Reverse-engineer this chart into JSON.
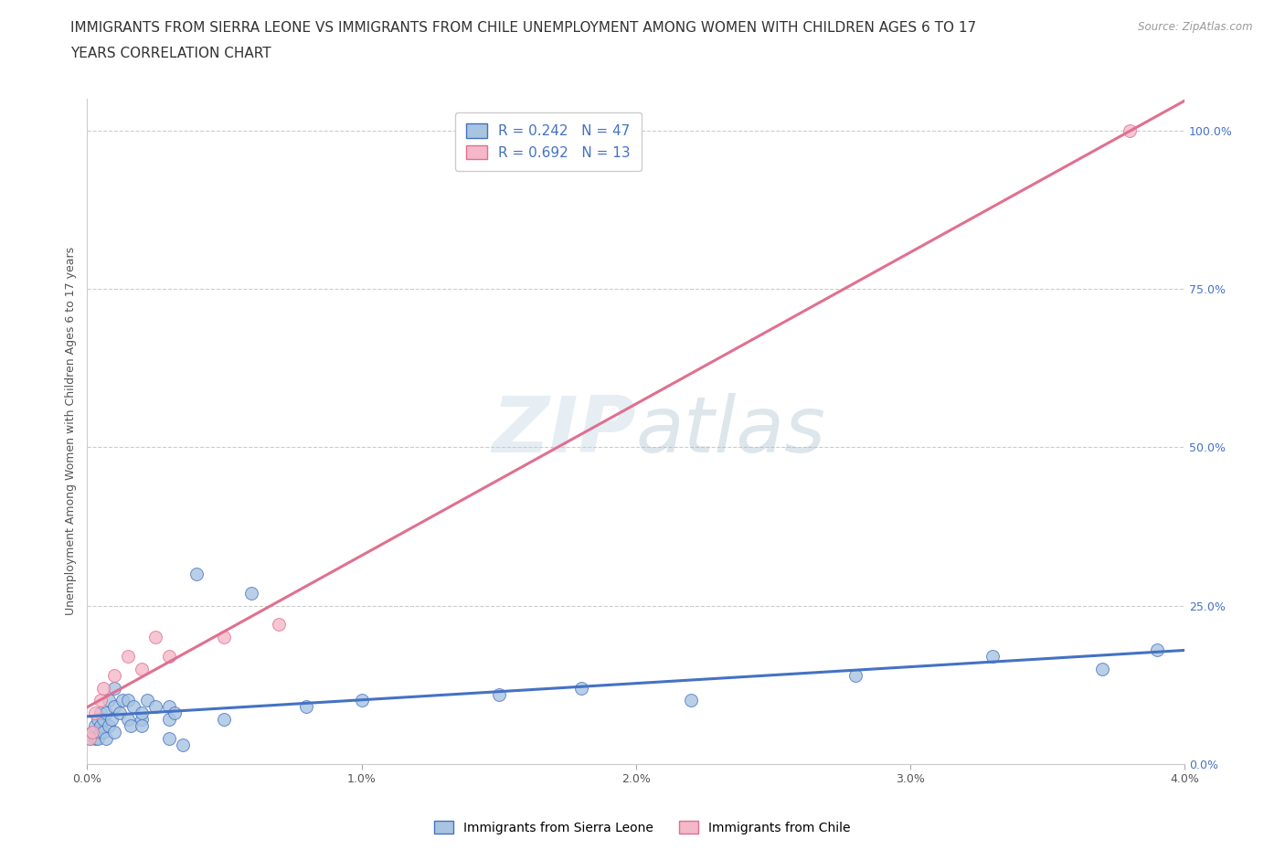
{
  "title_line1": "IMMIGRANTS FROM SIERRA LEONE VS IMMIGRANTS FROM CHILE UNEMPLOYMENT AMONG WOMEN WITH CHILDREN AGES 6 TO 17",
  "title_line2": "YEARS CORRELATION CHART",
  "source_text": "Source: ZipAtlas.com",
  "ylabel": "Unemployment Among Women with Children Ages 6 to 17 years",
  "xlim": [
    0.0,
    0.04
  ],
  "ylim": [
    0.0,
    1.05
  ],
  "xticks": [
    0.0,
    0.01,
    0.02,
    0.03,
    0.04
  ],
  "xticklabels": [
    "0.0%",
    "1.0%",
    "2.0%",
    "3.0%",
    "4.0%"
  ],
  "yticks": [
    0.0,
    0.25,
    0.5,
    0.75,
    1.0
  ],
  "yticklabels": [
    "0.0%",
    "25.0%",
    "50.0%",
    "75.0%",
    "100.0%"
  ],
  "sierra_leone_color": "#a8c4e0",
  "chile_color": "#f4b8c8",
  "sierra_leone_edge_color": "#4472c4",
  "chile_edge_color": "#e07090",
  "sierra_leone_line_color": "#4472c4",
  "chile_line_color": "#e07090",
  "sierra_leone_R": 0.242,
  "sierra_leone_N": 47,
  "chile_R": 0.692,
  "chile_N": 13,
  "sierra_leone_x": [
    0.0001,
    0.0002,
    0.0003,
    0.0003,
    0.0004,
    0.0004,
    0.0005,
    0.0005,
    0.0005,
    0.0006,
    0.0006,
    0.0007,
    0.0007,
    0.0008,
    0.0008,
    0.0009,
    0.001,
    0.001,
    0.001,
    0.0012,
    0.0013,
    0.0015,
    0.0015,
    0.0016,
    0.0017,
    0.002,
    0.002,
    0.002,
    0.0022,
    0.0025,
    0.003,
    0.003,
    0.003,
    0.0032,
    0.0035,
    0.004,
    0.005,
    0.006,
    0.008,
    0.01,
    0.015,
    0.018,
    0.022,
    0.028,
    0.033,
    0.037,
    0.039
  ],
  "sierra_leone_y": [
    0.04,
    0.05,
    0.04,
    0.06,
    0.04,
    0.07,
    0.05,
    0.06,
    0.08,
    0.05,
    0.07,
    0.04,
    0.08,
    0.06,
    0.1,
    0.07,
    0.05,
    0.09,
    0.12,
    0.08,
    0.1,
    0.07,
    0.1,
    0.06,
    0.09,
    0.07,
    0.08,
    0.06,
    0.1,
    0.09,
    0.07,
    0.09,
    0.04,
    0.08,
    0.03,
    0.3,
    0.07,
    0.27,
    0.09,
    0.1,
    0.11,
    0.12,
    0.1,
    0.14,
    0.17,
    0.15,
    0.18
  ],
  "chile_x": [
    0.0001,
    0.0002,
    0.0003,
    0.0005,
    0.0006,
    0.001,
    0.0015,
    0.002,
    0.0025,
    0.003,
    0.005,
    0.007,
    0.038
  ],
  "chile_y": [
    0.04,
    0.05,
    0.08,
    0.1,
    0.12,
    0.14,
    0.17,
    0.15,
    0.2,
    0.17,
    0.2,
    0.22,
    1.0
  ],
  "watermark_zip": "ZIP",
  "watermark_atlas": "atlas",
  "background_color": "#ffffff",
  "grid_color": "#cccccc",
  "title_fontsize": 11,
  "axis_label_fontsize": 9,
  "tick_fontsize": 9,
  "legend_fontsize": 11,
  "ytick_color": "#4472c4",
  "xtick_color": "#555555"
}
